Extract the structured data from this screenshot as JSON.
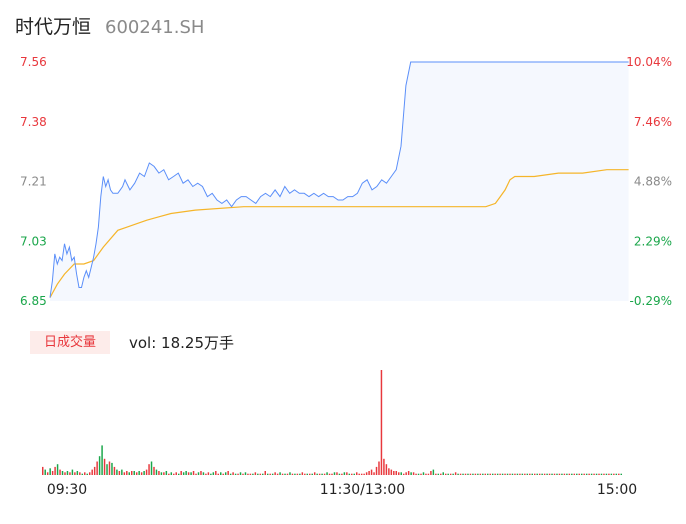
{
  "header": {
    "name": "时代万恒",
    "code": "600241.SH"
  },
  "volume": {
    "badge": "日成交量",
    "text": "vol: 18.25万手"
  },
  "colors": {
    "up": "#e8383d",
    "down": "#1aa64a",
    "flat": "#8a8a8a",
    "price_line": "#5b8ff9",
    "avg_line": "#f5b52a",
    "area": "#f5f8fe"
  },
  "chart_data": {
    "type": "line",
    "y_left_ticks": [
      "7.56",
      "7.38",
      "7.21",
      "7.03",
      "6.85"
    ],
    "y_right_ticks": [
      "10.04%",
      "7.46%",
      "4.88%",
      "2.29%",
      "-0.29%"
    ],
    "x_ticks": [
      "09:30",
      "11:30/13:00",
      "15:00"
    ],
    "ylim": [
      6.85,
      7.56
    ],
    "minutes": 240,
    "series": [
      {
        "key": "price",
        "x": [
          0,
          1,
          2,
          3,
          4,
          5,
          6,
          7,
          8,
          9,
          10,
          11,
          12,
          13,
          14,
          15,
          16,
          17,
          18,
          19,
          20,
          21,
          22,
          23,
          24,
          25,
          26,
          27,
          28,
          29,
          30,
          31,
          33,
          35,
          37,
          39,
          41,
          43,
          45,
          47,
          49,
          51,
          53,
          55,
          57,
          59,
          61,
          63,
          65,
          67,
          69,
          71,
          73,
          75,
          77,
          79,
          81,
          83,
          85,
          87,
          89,
          91,
          93,
          95,
          97,
          99,
          101,
          103,
          105,
          107,
          109,
          111,
          113,
          115,
          117,
          119,
          121,
          123,
          125,
          127,
          129,
          131,
          133,
          135,
          137,
          139,
          141,
          143,
          145,
          147,
          149,
          151,
          153,
          155,
          157,
          159,
          161,
          163,
          165,
          167,
          169,
          171,
          173,
          175,
          177,
          179,
          181,
          183,
          185,
          187,
          189,
          191,
          193,
          195,
          197,
          199,
          201,
          203,
          205,
          207,
          209,
          211,
          213,
          215,
          217,
          219,
          221,
          223,
          225,
          227,
          229,
          231,
          233,
          235,
          237,
          239
        ],
        "values": [
          6.86,
          6.91,
          6.99,
          6.96,
          6.98,
          6.97,
          7.02,
          6.99,
          7.01,
          6.97,
          6.98,
          6.93,
          6.89,
          6.89,
          6.92,
          6.94,
          6.92,
          6.95,
          6.98,
          7.02,
          7.07,
          7.16,
          7.22,
          7.19,
          7.21,
          7.18,
          7.17,
          7.17,
          7.17,
          7.18,
          7.19,
          7.21,
          7.18,
          7.2,
          7.23,
          7.22,
          7.26,
          7.25,
          7.23,
          7.24,
          7.21,
          7.22,
          7.23,
          7.2,
          7.21,
          7.19,
          7.2,
          7.19,
          7.16,
          7.17,
          7.15,
          7.14,
          7.15,
          7.13,
          7.15,
          7.16,
          7.16,
          7.15,
          7.14,
          7.16,
          7.17,
          7.16,
          7.18,
          7.16,
          7.19,
          7.17,
          7.18,
          7.17,
          7.17,
          7.16,
          7.17,
          7.16,
          7.17,
          7.16,
          7.16,
          7.15,
          7.15,
          7.16,
          7.16,
          7.17,
          7.2,
          7.21,
          7.18,
          7.19,
          7.21,
          7.2,
          7.22,
          7.24,
          7.31,
          7.49,
          7.56,
          7.56,
          7.56,
          7.56,
          7.56,
          7.56,
          7.56,
          7.56,
          7.56,
          7.56,
          7.56,
          7.56,
          7.56,
          7.56,
          7.56,
          7.56,
          7.56,
          7.56,
          7.56,
          7.56,
          7.56,
          7.56,
          7.56,
          7.56,
          7.56,
          7.56,
          7.56,
          7.56,
          7.56,
          7.56,
          7.56,
          7.56,
          7.56,
          7.56,
          7.56,
          7.56,
          7.56,
          7.56,
          7.56,
          7.56,
          7.56,
          7.56,
          7.56,
          7.56,
          7.56,
          7.56
        ]
      },
      {
        "key": "avg",
        "x": [
          0,
          3,
          6,
          10,
          14,
          18,
          22,
          28,
          32,
          36,
          40,
          45,
          50,
          60,
          80,
          100,
          120,
          140,
          160,
          170,
          180,
          184,
          186,
          188,
          190,
          192,
          194,
          200,
          210,
          220,
          230,
          239
        ],
        "values": [
          6.86,
          6.9,
          6.93,
          6.96,
          6.96,
          6.97,
          7.01,
          7.06,
          7.07,
          7.08,
          7.09,
          7.1,
          7.11,
          7.12,
          7.13,
          7.13,
          7.13,
          7.13,
          7.13,
          7.13,
          7.13,
          7.14,
          7.16,
          7.18,
          7.21,
          7.22,
          7.22,
          7.22,
          7.23,
          7.23,
          7.24,
          7.24
        ]
      }
    ],
    "volume_bars": {
      "values": [
        6,
        4,
        2,
        5,
        3,
        6,
        8,
        4,
        3,
        2,
        3,
        2,
        4,
        2,
        3,
        2,
        1,
        2,
        1,
        2,
        4,
        6,
        10,
        14,
        22,
        12,
        8,
        10,
        9,
        6,
        4,
        3,
        4,
        2,
        3,
        2,
        3,
        3,
        2,
        3,
        2,
        3,
        4,
        8,
        10,
        6,
        4,
        3,
        2,
        2,
        3,
        1,
        2,
        1,
        2,
        1,
        3,
        2,
        3,
        2,
        2,
        3,
        1,
        2,
        3,
        2,
        1,
        2,
        1,
        2,
        3,
        1,
        2,
        1,
        2,
        3,
        1,
        2,
        1,
        1,
        2,
        1,
        2,
        1,
        1,
        1,
        2,
        1,
        1,
        1,
        3,
        1,
        1,
        1,
        2,
        1,
        2,
        1,
        1,
        1,
        2,
        1,
        1,
        1,
        1,
        2,
        1,
        1,
        1,
        1,
        2,
        1,
        1,
        1,
        1,
        2,
        1,
        1,
        2,
        2,
        1,
        1,
        2,
        2,
        1,
        1,
        1,
        2,
        1,
        1,
        1,
        2,
        3,
        4,
        2,
        6,
        10,
        78,
        12,
        8,
        5,
        4,
        3,
        3,
        2,
        2,
        1,
        2,
        3,
        2,
        2,
        1,
        1,
        1,
        2,
        1,
        1,
        3,
        4,
        1,
        1,
        1,
        2,
        1,
        1,
        1,
        1,
        2,
        1,
        1,
        1,
        1,
        1,
        1,
        1,
        1,
        1,
        1,
        1,
        1,
        1,
        1,
        1,
        1,
        1,
        1,
        1,
        1,
        1,
        1,
        1,
        1,
        1,
        1,
        1,
        1,
        1,
        1,
        1,
        1,
        1,
        1,
        1,
        1,
        1,
        1,
        1,
        1,
        1,
        1,
        1,
        1,
        1,
        1,
        1,
        1,
        1,
        1,
        1,
        1,
        1,
        1,
        1,
        1,
        1,
        1,
        1,
        1,
        1,
        1,
        1,
        1,
        1,
        1,
        1
      ],
      "up": [
        true,
        false,
        true,
        false,
        true,
        true,
        false,
        true,
        false,
        true,
        false,
        true,
        false,
        true,
        false,
        true,
        false,
        true,
        false,
        true,
        true,
        true,
        true,
        false,
        false,
        true,
        false,
        true,
        false,
        true,
        false,
        true,
        false,
        true,
        true,
        false,
        true,
        false,
        true,
        false,
        true,
        false,
        true,
        true,
        false,
        true,
        false,
        true,
        false,
        true,
        false,
        true,
        false,
        true,
        true,
        false,
        true,
        false,
        false,
        true,
        false,
        true,
        true,
        false,
        true,
        false,
        true,
        true,
        false,
        false,
        true,
        true,
        false,
        true,
        false,
        true,
        false,
        true,
        false,
        true,
        false,
        true,
        false,
        true,
        true,
        false,
        true,
        false,
        true,
        false,
        true,
        false,
        true,
        false,
        true,
        true,
        false,
        true,
        false,
        true,
        false,
        true,
        false,
        true,
        false,
        true,
        true,
        false,
        true,
        false,
        true,
        false,
        true,
        false,
        true,
        false,
        true,
        true,
        false,
        true,
        false,
        true,
        false,
        true,
        false,
        true,
        false,
        true,
        true,
        true,
        true,
        true,
        true,
        true,
        true,
        true,
        true,
        true,
        true,
        true,
        true,
        true,
        true,
        true,
        true,
        false,
        true,
        true,
        true,
        false,
        true,
        true,
        false,
        true,
        false,
        true,
        true,
        true,
        false,
        true,
        false,
        true,
        false,
        true,
        false,
        true,
        false,
        true,
        false,
        true,
        false,
        true,
        false,
        true,
        false,
        true,
        false,
        true,
        false,
        true,
        false,
        true,
        false,
        true,
        false,
        true,
        false,
        true,
        false,
        true,
        false,
        true,
        false,
        true,
        false,
        true,
        false,
        true,
        false,
        true,
        false,
        true,
        false,
        true,
        false,
        true,
        false,
        true,
        false,
        true,
        false,
        true,
        false,
        true,
        false,
        true,
        false,
        true,
        false,
        true,
        false,
        true,
        false,
        true,
        false,
        true,
        false,
        true,
        false,
        true,
        false,
        true,
        false,
        true,
        false,
        true,
        false,
        true,
        false
      ]
    }
  }
}
